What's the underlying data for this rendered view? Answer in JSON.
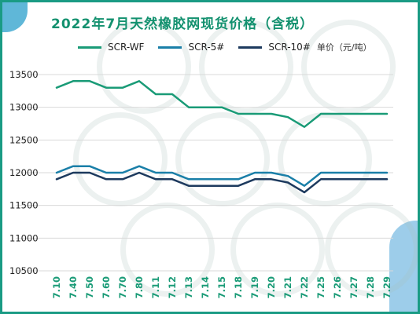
{
  "chart_data": {
    "type": "line",
    "title": "2022年7月天然橡胶网现货价格（含税）",
    "unit": "单价（元/吨）",
    "categories": [
      "7.10",
      "7.40",
      "7.50",
      "7.60",
      "7.70",
      "7.80",
      "7.11",
      "7.12",
      "7.13",
      "7.14",
      "7.15",
      "7.18",
      "7.19",
      "7.20",
      "7.21",
      "7.22",
      "7.25",
      "7.26",
      "7.27",
      "7.28",
      "7.29"
    ],
    "yticks": [
      10500,
      11000,
      11500,
      12000,
      12500,
      13000,
      13500
    ],
    "ylim": [
      10500,
      13500
    ],
    "series": [
      {
        "name": "SCR-WF",
        "color": "#1a9b77",
        "values": [
          13300,
          13400,
          13400,
          13300,
          13300,
          13400,
          13200,
          13200,
          13000,
          13000,
          13000,
          12900,
          12900,
          12900,
          12850,
          12700,
          12900,
          12900,
          12900,
          12900,
          12900
        ]
      },
      {
        "name": "SCR-5#",
        "color": "#1a7fa8",
        "values": [
          12000,
          12100,
          12100,
          12000,
          12000,
          12100,
          12000,
          12000,
          11900,
          11900,
          11900,
          11900,
          12000,
          12000,
          11950,
          11800,
          12000,
          12000,
          12000,
          12000,
          12000
        ]
      },
      {
        "name": "SCR-10#",
        "color": "#1d3a5e",
        "values": [
          11900,
          12000,
          12000,
          11900,
          11900,
          12000,
          11900,
          11900,
          11800,
          11800,
          11800,
          11800,
          11900,
          11900,
          11850,
          11700,
          11900,
          11900,
          11900,
          11900,
          11900
        ]
      }
    ]
  }
}
